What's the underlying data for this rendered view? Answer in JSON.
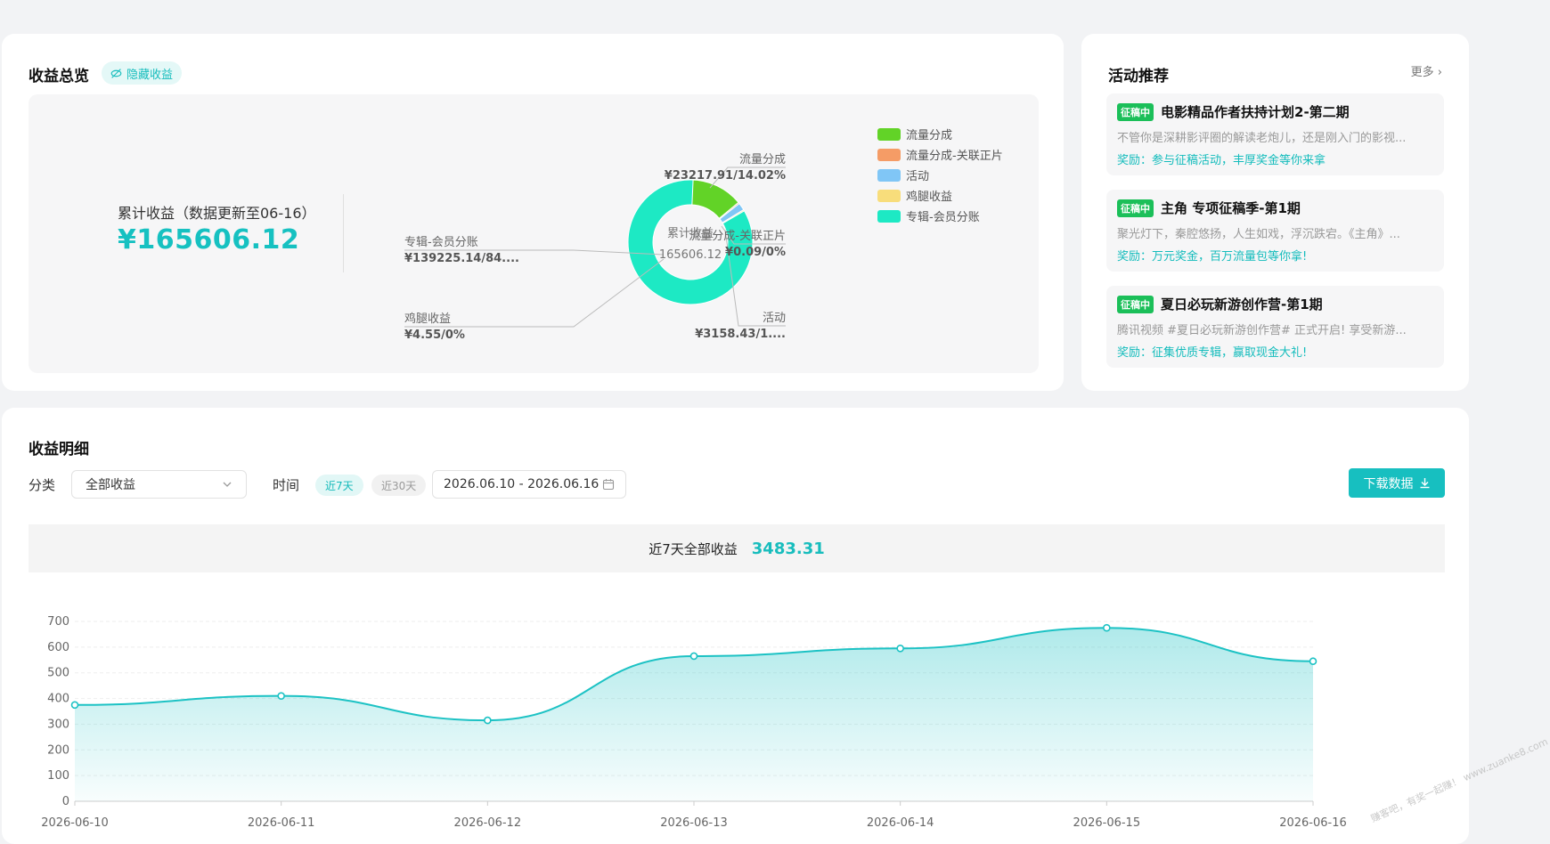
{
  "overview": {
    "title": "收益总览",
    "hide_label": "隐藏收益",
    "total_label": "累计收益（数据更新至06-16）",
    "total_value": "¥165606.12",
    "donut_center_label": "累计收益",
    "donut_center_value": "165606.12",
    "slices": [
      {
        "name": "流量分成",
        "value": "¥23217.91/14.02%",
        "percent": 14.02,
        "color": "#62d327"
      },
      {
        "name": "流量分成-关联正片",
        "value": "¥0.09/0%",
        "percent": 0.0,
        "color": "#f59c66"
      },
      {
        "name": "活动",
        "value": "¥3158.43/1....",
        "percent": 1.91,
        "color": "#80c6f6"
      },
      {
        "name": "鸡腿收益",
        "value": "¥4.55/0%",
        "percent": 0.0,
        "color": "#f8dd7b"
      },
      {
        "name": "专辑-会员分账",
        "value": "¥139225.14/84....",
        "percent": 84.07,
        "color": "#1de9c4"
      }
    ]
  },
  "activities": {
    "title": "活动推荐",
    "more": "更多",
    "items": [
      {
        "badge": "征稿中",
        "title": "电影精品作者扶持计划2-第二期",
        "desc": "不管你是深耕影评圈的解读老炮儿，还是刚入门的影视...",
        "reward": "奖励：参与征稿活动，丰厚奖金等你来拿"
      },
      {
        "badge": "征稿中",
        "title": "主角 专项征稿季-第1期",
        "desc": "聚光灯下，秦腔悠扬，人生如戏，浮沉跌宕。《主角》...",
        "reward": "奖励：万元奖金，百万流量包等你拿!"
      },
      {
        "badge": "征稿中",
        "title": "夏日必玩新游创作营-第1期",
        "desc": "腾讯视频 #夏日必玩新游创作营# 正式开启! 享受新游...",
        "reward": "奖励：征集优质专辑，赢取现金大礼!"
      }
    ]
  },
  "detail": {
    "title": "收益明细",
    "category_label": "分类",
    "category_value": "全部收益",
    "time_label": "时间",
    "range_7": "近7天",
    "range_30": "近30天",
    "date_range": "2026.06.10 - 2026.06.16",
    "download": "下载数据",
    "summary_label": "近7天全部收益",
    "summary_value": "3483.31"
  },
  "chart_data": {
    "type": "area",
    "x": [
      "2026-06-10",
      "2026-06-11",
      "2026-06-12",
      "2026-06-13",
      "2026-06-14",
      "2026-06-15",
      "2026-06-16"
    ],
    "series": [
      {
        "values": [
          375,
          410,
          315,
          565,
          595,
          675,
          545
        ]
      }
    ],
    "ylim": [
      0,
      700
    ],
    "yticks": [
      0,
      100,
      200,
      300,
      400,
      500,
      600,
      700
    ],
    "grid": true,
    "color": "#1cc2c4"
  },
  "watermark": "赚客吧，有奖一起赚！ www.zuanke8.com"
}
